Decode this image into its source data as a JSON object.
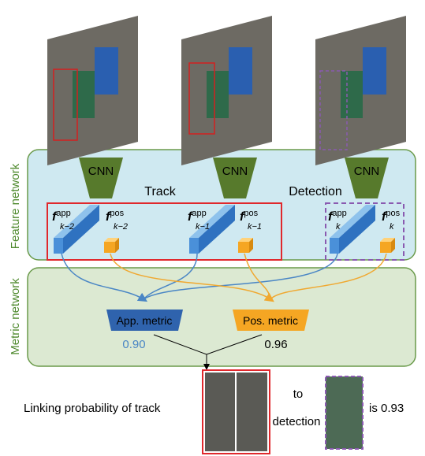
{
  "side_labels": {
    "feature": "Feature network",
    "metric": "Metric network"
  },
  "cnn": [
    "CNN",
    "CNN",
    "CNN"
  ],
  "groups": {
    "track": "Track",
    "detection": "Detection"
  },
  "features": [
    {
      "symbol": "f",
      "sup": "app",
      "sub": "k−2"
    },
    {
      "symbol": "f",
      "sup": "pos",
      "sub": "k−2"
    },
    {
      "symbol": "f",
      "sup": "app",
      "sub": "k−1"
    },
    {
      "symbol": "f",
      "sup": "pos",
      "sub": "k−1"
    },
    {
      "symbol": "f",
      "sup": "app",
      "sub": "k"
    },
    {
      "symbol": "f",
      "sup": "pos",
      "sub": "k"
    }
  ],
  "metrics": {
    "app": {
      "label": "App. metric",
      "score": "0.90"
    },
    "pos": {
      "label": "Pos. metric",
      "score": "0.96"
    }
  },
  "caption": {
    "part1": "Linking probability of track",
    "part2": "to",
    "part3": "detection",
    "part4": "is 0.93"
  }
}
